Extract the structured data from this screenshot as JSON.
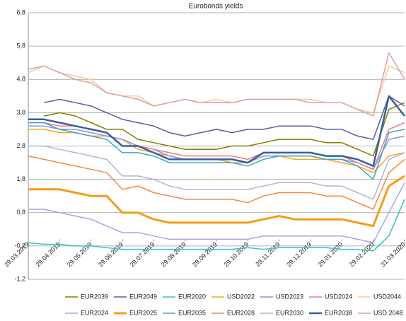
{
  "chart_data": {
    "type": "line",
    "title": "Eurobonds yields",
    "categories": [
      "29.03.2019",
      null,
      "29.04.2019",
      null,
      "29.05.2019",
      null,
      "29.06.2019",
      null,
      "29.07.2019",
      null,
      "29.08.2019",
      null,
      "29.09.2019",
      null,
      "29.10.2019",
      null,
      "29.11.2019",
      null,
      "29.12.2019",
      null,
      "29.01.2020",
      null,
      "29.02.2020",
      null,
      "31.03.2020"
    ],
    "ylim": [
      -1.2,
      6.8
    ],
    "yticks": [
      {
        "value": -1.2,
        "label": "-1,2"
      },
      {
        "value": -0.2,
        "label": "-0,2"
      },
      {
        "value": 0.8,
        "label": "0,8"
      },
      {
        "value": 1.8,
        "label": "1,8"
      },
      {
        "value": 2.8,
        "label": "2,8"
      },
      {
        "value": 3.8,
        "label": "3,8"
      },
      {
        "value": 4.8,
        "label": "4,8"
      },
      {
        "value": 5.8,
        "label": "5,8"
      },
      {
        "value": 6.8,
        "label": "6,8"
      }
    ],
    "grid": true,
    "series": [
      {
        "name": "EUR2039",
        "color": "#808000",
        "width": 1.5,
        "values": [
          null,
          3.7,
          3.8,
          3.7,
          3.5,
          3.3,
          3.3,
          3.0,
          2.9,
          2.8,
          2.7,
          2.7,
          2.7,
          2.8,
          2.8,
          2.9,
          3.0,
          3.0,
          3.0,
          2.9,
          2.9,
          2.7,
          2.5,
          3.9,
          4.1
        ]
      },
      {
        "name": "EUR2049",
        "color": "#5b5b9b",
        "width": 1.5,
        "values": [
          null,
          4.1,
          4.2,
          4.1,
          4.0,
          3.8,
          3.6,
          3.5,
          3.4,
          3.2,
          3.1,
          3.2,
          3.3,
          3.2,
          3.3,
          3.3,
          3.4,
          3.4,
          3.4,
          3.3,
          3.3,
          3.1,
          3.0,
          4.3,
          4.0
        ]
      },
      {
        "name": "EUR2020",
        "color": "#33c2c2",
        "width": 1.5,
        "values": [
          -0.1,
          -0.15,
          -0.15,
          -0.2,
          -0.2,
          -0.25,
          -0.3,
          -0.3,
          -0.3,
          -0.3,
          -0.3,
          -0.3,
          -0.3,
          -0.3,
          -0.25,
          -0.3,
          -0.25,
          -0.25,
          -0.25,
          -0.25,
          -0.3,
          -0.3,
          -0.35,
          0.1,
          1.2
        ]
      },
      {
        "name": "USD2022",
        "color": "#f5a623",
        "width": 1.5,
        "values": [
          3.3,
          3.3,
          3.2,
          3.2,
          3.1,
          3.1,
          3.0,
          2.7,
          2.6,
          2.5,
          2.4,
          2.4,
          2.4,
          2.3,
          2.3,
          2.5,
          2.5,
          2.4,
          2.4,
          2.4,
          2.3,
          2.2,
          2.0,
          2.5,
          2.6
        ]
      },
      {
        "name": "USD2023",
        "color": "#8f8fe0",
        "width": 1.5,
        "values": [
          3.4,
          3.4,
          3.3,
          3.3,
          3.2,
          3.1,
          3.0,
          2.8,
          2.7,
          2.5,
          2.4,
          2.4,
          2.4,
          2.4,
          2.3,
          2.5,
          2.5,
          2.5,
          2.5,
          2.4,
          2.4,
          2.3,
          2.1,
          3.0,
          3.1
        ]
      },
      {
        "name": "USD2024",
        "color": "#f07a7a",
        "width": 1.5,
        "values": [
          3.5,
          3.5,
          3.4,
          3.4,
          3.3,
          3.2,
          2.8,
          2.8,
          2.7,
          2.6,
          2.5,
          2.5,
          2.5,
          2.5,
          2.4,
          2.6,
          2.6,
          2.6,
          2.6,
          2.5,
          2.5,
          2.3,
          2.1,
          3.3,
          3.5
        ]
      },
      {
        "name": "USD2044",
        "color": "#fcc896",
        "width": 1.5,
        "values": [
          5.0,
          5.2,
          5.0,
          4.9,
          4.8,
          4.4,
          4.3,
          4.3,
          4.0,
          4.1,
          4.2,
          4.1,
          4.2,
          4.1,
          4.2,
          4.2,
          4.2,
          4.2,
          4.2,
          4.1,
          4.1,
          3.9,
          3.8,
          5.2,
          5.0
        ]
      },
      {
        "name": "EUR2024",
        "color": "#a4a4f0",
        "width": 1.5,
        "values": [
          0.9,
          0.9,
          0.8,
          0.7,
          0.6,
          0.4,
          0.2,
          0.2,
          0.1,
          0.0,
          0.0,
          0.0,
          0.0,
          0.0,
          0.0,
          0.1,
          0.1,
          0.1,
          0.1,
          0.1,
          0.1,
          0.0,
          -0.1,
          0.8,
          1.7
        ]
      },
      {
        "name": "EUR2025",
        "color": "#f59a1a",
        "width": 3,
        "values": [
          1.5,
          1.5,
          1.5,
          1.4,
          1.3,
          1.3,
          0.8,
          0.8,
          0.6,
          0.5,
          0.5,
          0.5,
          0.5,
          0.5,
          0.5,
          0.6,
          0.7,
          0.6,
          0.6,
          0.6,
          0.6,
          0.5,
          0.4,
          1.6,
          1.9
        ]
      },
      {
        "name": "EUR2035",
        "color": "#3aa8c0",
        "width": 1.5,
        "values": [
          3.5,
          3.5,
          3.3,
          3.2,
          3.1,
          3.0,
          2.6,
          2.6,
          2.5,
          2.3,
          2.3,
          2.3,
          2.3,
          2.3,
          2.2,
          2.4,
          2.5,
          2.5,
          2.5,
          2.4,
          2.4,
          2.2,
          1.8,
          3.2,
          3.3
        ]
      },
      {
        "name": "EUR2028",
        "color": "#f08a40",
        "width": 1.5,
        "values": [
          2.5,
          2.4,
          2.3,
          2.2,
          2.1,
          2.0,
          1.5,
          1.6,
          1.4,
          1.3,
          1.2,
          1.2,
          1.2,
          1.2,
          1.1,
          1.3,
          1.4,
          1.4,
          1.4,
          1.3,
          1.3,
          1.1,
          0.9,
          2.0,
          2.4
        ]
      },
      {
        "name": "EUR2030",
        "color": "#a8b8d8",
        "width": 1.5,
        "values": [
          2.8,
          2.8,
          2.7,
          2.6,
          2.5,
          2.4,
          1.9,
          1.9,
          1.8,
          1.6,
          1.5,
          1.5,
          1.5,
          1.5,
          1.5,
          1.6,
          1.7,
          1.7,
          1.7,
          1.6,
          1.6,
          1.4,
          1.2,
          2.4,
          2.6
        ]
      },
      {
        "name": "EUR2038",
        "color": "#3a5f9a",
        "width": 2.5,
        "values": [
          3.6,
          3.6,
          3.5,
          3.4,
          3.3,
          3.2,
          2.8,
          2.8,
          2.6,
          2.4,
          2.4,
          2.4,
          2.4,
          2.4,
          2.3,
          2.6,
          2.6,
          2.6,
          2.6,
          2.5,
          2.5,
          2.4,
          2.2,
          4.3,
          3.7
        ]
      },
      {
        "name": "USD 2048",
        "color": "#d8a0a0",
        "width": 1.5,
        "values": [
          5.1,
          5.2,
          5.0,
          4.8,
          4.7,
          4.4,
          4.3,
          4.2,
          4.0,
          4.1,
          4.2,
          4.1,
          4.1,
          4.1,
          4.2,
          4.2,
          4.2,
          4.2,
          4.1,
          4.1,
          4.1,
          3.9,
          3.7,
          5.6,
          4.8
        ]
      }
    ]
  }
}
